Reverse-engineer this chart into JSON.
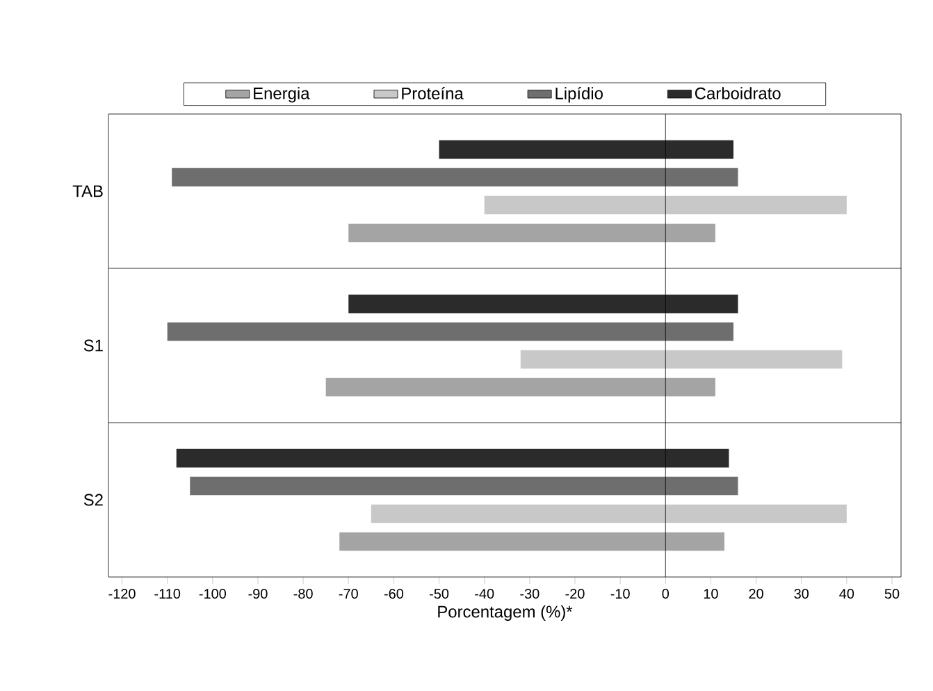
{
  "chart_data": {
    "type": "bar",
    "orientation": "horizontal",
    "categories": [
      "TAB",
      "S1",
      "S2"
    ],
    "series": [
      {
        "name": "Energia",
        "color": "#a4a4a4",
        "base": [
          -70,
          -75,
          -72
        ],
        "values": [
          81,
          86,
          85
        ]
      },
      {
        "name": "Proteína",
        "color": "#c8c8c8",
        "base": [
          -40,
          -32,
          -65
        ],
        "values": [
          80,
          71,
          105
        ]
      },
      {
        "name": "Lipídio",
        "color": "#6e6e6e",
        "base": [
          -109,
          -110,
          -105
        ],
        "values": [
          125,
          125,
          121
        ]
      },
      {
        "name": "Carboidrato",
        "color": "#2b2b2b",
        "base": [
          -50,
          -70,
          -108
        ],
        "values": [
          65,
          86,
          122
        ]
      }
    ],
    "xlabel": "Porcentagem (%)*",
    "xlim": [
      -123,
      52
    ],
    "xticks": [
      -120,
      -110,
      -100,
      -90,
      -80,
      -70,
      -60,
      -50,
      -40,
      -30,
      -20,
      -10,
      0,
      10,
      20,
      30,
      40,
      50
    ],
    "ref_lines": [
      {
        "axis": "x",
        "value": 0
      }
    ],
    "legend": "top"
  }
}
